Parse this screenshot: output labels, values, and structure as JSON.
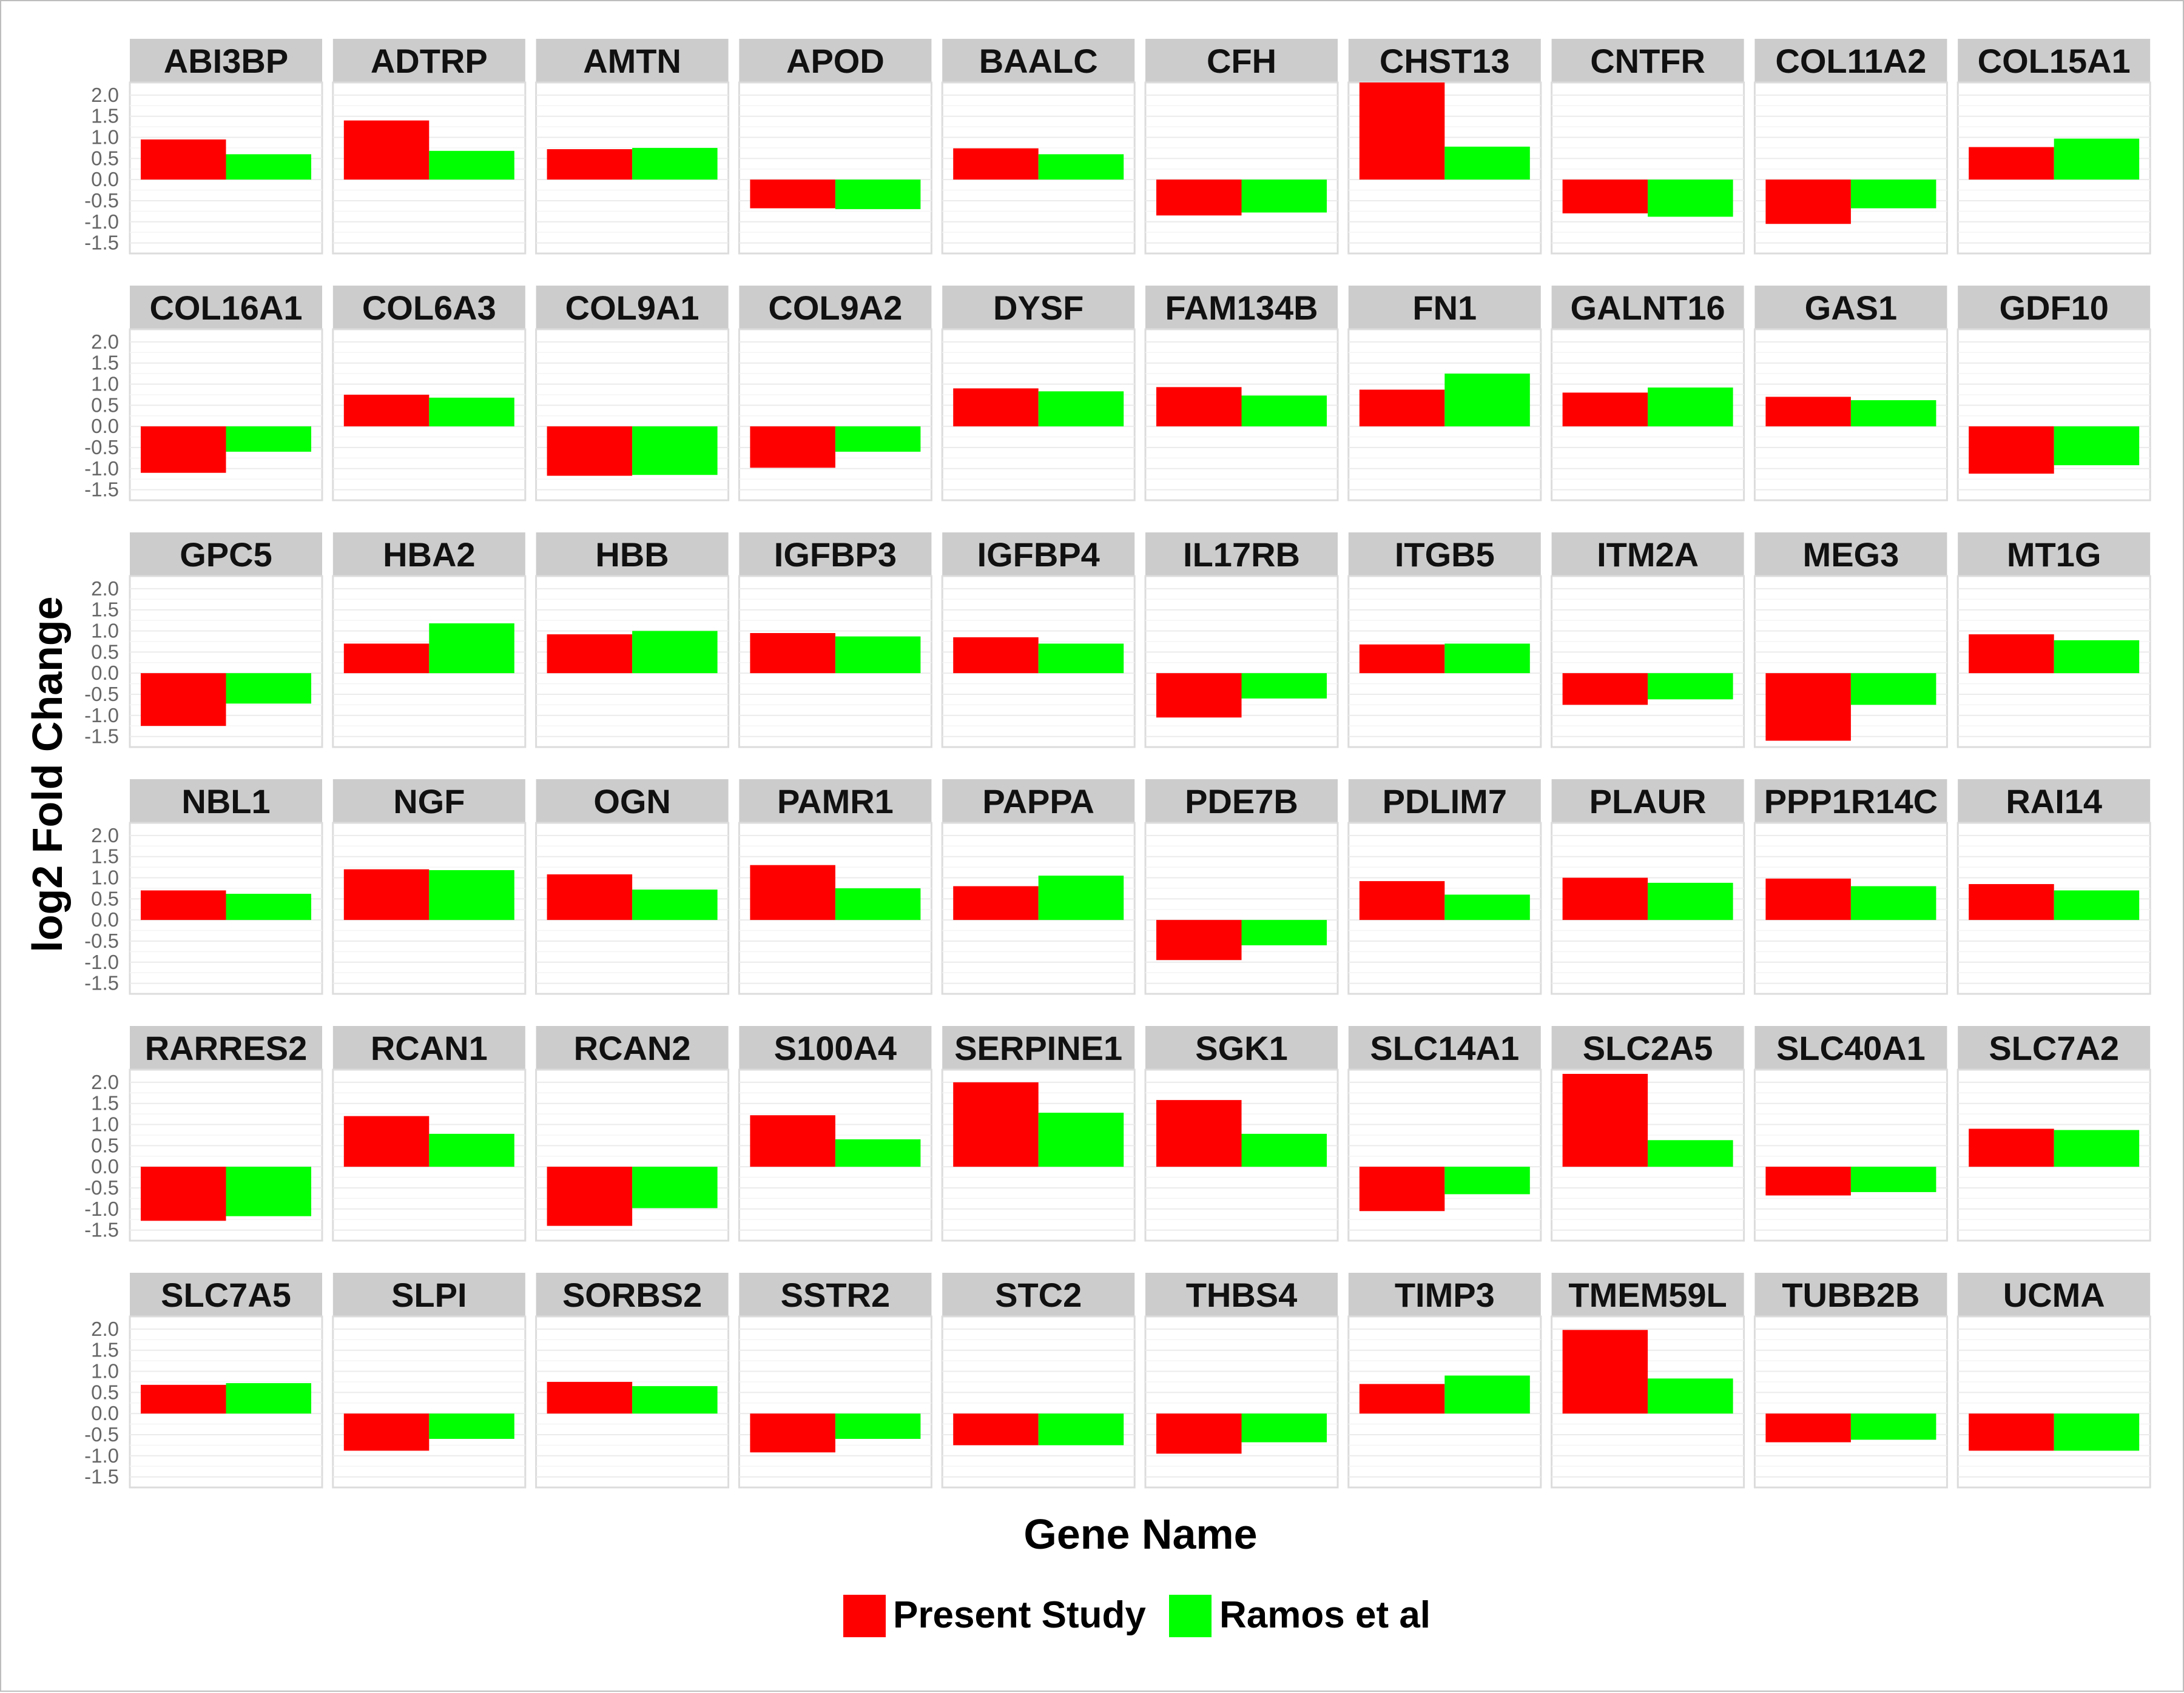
{
  "chart_data": {
    "type": "bar",
    "facet_layout": "6 rows x 10 columns",
    "xlabel": "Gene Name",
    "ylabel": "log2 Fold Change",
    "ylim": [
      -1.75,
      2.3
    ],
    "y_ticks": [
      "2.0",
      "1.5",
      "1.0",
      "0.5",
      "0.0",
      "-0.5",
      "-1.0",
      "-1.5"
    ],
    "legend_position": "bottom",
    "colors": {
      "present_study": "#ff0000",
      "ramos_et_al": "#00ff00"
    },
    "series": [
      {
        "name": "Present Study",
        "color": "#ff0000"
      },
      {
        "name": "Ramos et al",
        "color": "#00ff00"
      }
    ],
    "panels": [
      {
        "gene": "ABI3BP",
        "present": 0.95,
        "ramos": 0.6
      },
      {
        "gene": "ADTRP",
        "present": 1.4,
        "ramos": 0.68
      },
      {
        "gene": "AMTN",
        "present": 0.72,
        "ramos": 0.75
      },
      {
        "gene": "APOD",
        "present": -0.68,
        "ramos": -0.7
      },
      {
        "gene": "BAALC",
        "present": 0.74,
        "ramos": 0.6
      },
      {
        "gene": "CFH",
        "present": -0.85,
        "ramos": -0.78
      },
      {
        "gene": "CHST13",
        "present": 2.3,
        "ramos": 0.78
      },
      {
        "gene": "CNTFR",
        "present": -0.8,
        "ramos": -0.88
      },
      {
        "gene": "COL11A2",
        "present": -1.05,
        "ramos": -0.68
      },
      {
        "gene": "COL15A1",
        "present": 0.77,
        "ramos": 0.97
      },
      {
        "gene": "COL16A1",
        "present": -1.1,
        "ramos": -0.6
      },
      {
        "gene": "COL6A3",
        "present": 0.75,
        "ramos": 0.68
      },
      {
        "gene": "COL9A1",
        "present": -1.17,
        "ramos": -1.15
      },
      {
        "gene": "COL9A2",
        "present": -0.98,
        "ramos": -0.6
      },
      {
        "gene": "DYSF",
        "present": 0.9,
        "ramos": 0.83
      },
      {
        "gene": "FAM134B",
        "present": 0.93,
        "ramos": 0.73
      },
      {
        "gene": "FN1",
        "present": 0.87,
        "ramos": 1.25
      },
      {
        "gene": "GALNT16",
        "present": 0.8,
        "ramos": 0.92
      },
      {
        "gene": "GAS1",
        "present": 0.7,
        "ramos": 0.62
      },
      {
        "gene": "GDF10",
        "present": -1.12,
        "ramos": -0.92
      },
      {
        "gene": "GPC5",
        "present": -1.25,
        "ramos": -0.72
      },
      {
        "gene": "HBA2",
        "present": 0.7,
        "ramos": 1.18
      },
      {
        "gene": "HBB",
        "present": 0.92,
        "ramos": 1.0
      },
      {
        "gene": "IGFBP3",
        "present": 0.95,
        "ramos": 0.87
      },
      {
        "gene": "IGFBP4",
        "present": 0.85,
        "ramos": 0.7
      },
      {
        "gene": "IL17RB",
        "present": -1.05,
        "ramos": -0.6
      },
      {
        "gene": "ITGB5",
        "present": 0.68,
        "ramos": 0.7
      },
      {
        "gene": "ITM2A",
        "present": -0.75,
        "ramos": -0.62
      },
      {
        "gene": "MEG3",
        "present": -1.6,
        "ramos": -0.75
      },
      {
        "gene": "MT1G",
        "present": 0.92,
        "ramos": 0.78
      },
      {
        "gene": "NBL1",
        "present": 0.7,
        "ramos": 0.62
      },
      {
        "gene": "NGF",
        "present": 1.2,
        "ramos": 1.18
      },
      {
        "gene": "OGN",
        "present": 1.08,
        "ramos": 0.72
      },
      {
        "gene": "PAMR1",
        "present": 1.3,
        "ramos": 0.75
      },
      {
        "gene": "PAPPA",
        "present": 0.8,
        "ramos": 1.05
      },
      {
        "gene": "PDE7B",
        "present": -0.95,
        "ramos": -0.6
      },
      {
        "gene": "PDLIM7",
        "present": 0.92,
        "ramos": 0.6
      },
      {
        "gene": "PLAUR",
        "present": 1.0,
        "ramos": 0.88
      },
      {
        "gene": "PPP1R14C",
        "present": 0.98,
        "ramos": 0.8
      },
      {
        "gene": "RAI14",
        "present": 0.85,
        "ramos": 0.7
      },
      {
        "gene": "RARRES2",
        "present": -1.28,
        "ramos": -1.17
      },
      {
        "gene": "RCAN1",
        "present": 1.2,
        "ramos": 0.78
      },
      {
        "gene": "RCAN2",
        "present": -1.4,
        "ramos": -0.98
      },
      {
        "gene": "S100A4",
        "present": 1.22,
        "ramos": 0.65
      },
      {
        "gene": "SERPINE1",
        "present": 2.0,
        "ramos": 1.28
      },
      {
        "gene": "SGK1",
        "present": 1.58,
        "ramos": 0.78
      },
      {
        "gene": "SLC14A1",
        "present": -1.05,
        "ramos": -0.65
      },
      {
        "gene": "SLC2A5",
        "present": 2.2,
        "ramos": 0.63
      },
      {
        "gene": "SLC40A1",
        "present": -0.68,
        "ramos": -0.6
      },
      {
        "gene": "SLC7A2",
        "present": 0.9,
        "ramos": 0.87
      },
      {
        "gene": "SLC7A5",
        "present": 0.68,
        "ramos": 0.72
      },
      {
        "gene": "SLPI",
        "present": -0.88,
        "ramos": -0.6
      },
      {
        "gene": "SORBS2",
        "present": 0.75,
        "ramos": 0.65
      },
      {
        "gene": "SSTR2",
        "present": -0.92,
        "ramos": -0.6
      },
      {
        "gene": "STC2",
        "present": -0.75,
        "ramos": -0.75
      },
      {
        "gene": "THBS4",
        "present": -0.95,
        "ramos": -0.68
      },
      {
        "gene": "TIMP3",
        "present": 0.7,
        "ramos": 0.9
      },
      {
        "gene": "TMEM59L",
        "present": 1.98,
        "ramos": 0.83
      },
      {
        "gene": "TUBB2B",
        "present": -0.68,
        "ramos": -0.62
      },
      {
        "gene": "UCMA",
        "present": -0.88,
        "ramos": -0.88
      }
    ]
  }
}
